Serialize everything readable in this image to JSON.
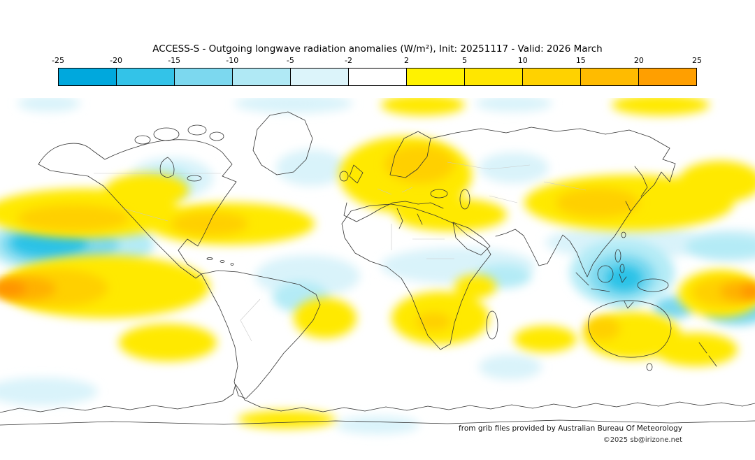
{
  "title": "ACCESS-S - Outgoing longwave radiation anomalies (W/m²), Init: 20251117 - Valid: 2026 March",
  "colorbar": {
    "tick_labels": [
      "-25",
      "-20",
      "-15",
      "-10",
      "-5",
      "-2",
      "2",
      "5",
      "10",
      "15",
      "20",
      "25"
    ],
    "segment_colors": [
      "#00a8dd",
      "#33c3e8",
      "#7cd8ef",
      "#b0e9f5",
      "#dcf4fa",
      "#ffffff",
      "#fff200",
      "#ffe600",
      "#ffd200",
      "#ffbb00",
      "#ff9f00"
    ]
  },
  "map_palette": {
    "cool_strong": "#29c2e7",
    "cool_medium": "#7cd8ef",
    "cool_pale": "#b4ebf6",
    "cool_faint": "#d9f3fa",
    "warm_yellow": "#ffe900",
    "warm_gold": "#ffd000",
    "warm_orange": "#ffb100",
    "warm_deep_orange": "#ff9300"
  },
  "attribution": {
    "source_note": "from grib files provided by Australian Bureau Of Meteorology",
    "copyright": "©2025 sb@irizone.net"
  }
}
